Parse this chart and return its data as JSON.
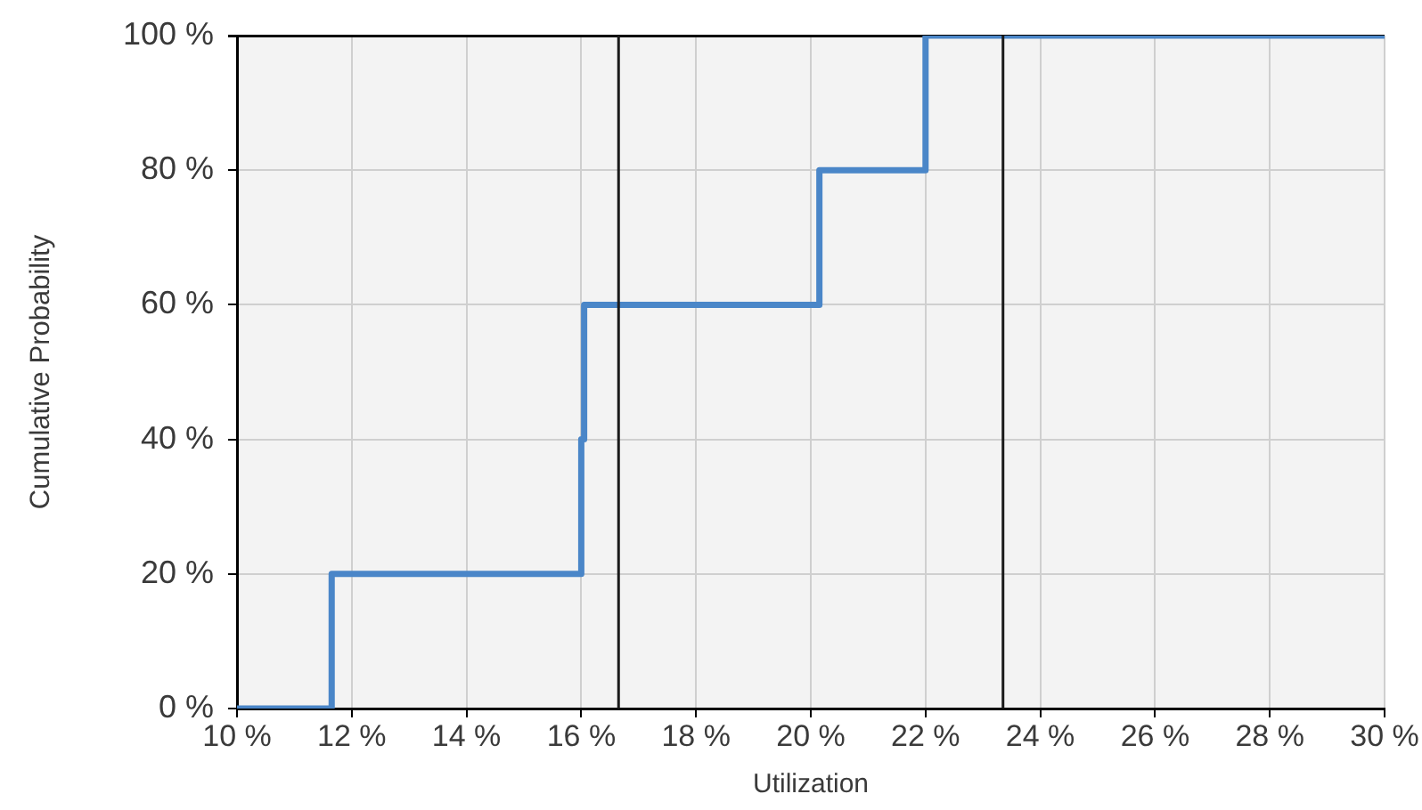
{
  "chart_data": {
    "type": "step",
    "xlabel": "Utilization",
    "ylabel": "Cumulative Probability",
    "x": [
      10,
      11.65,
      16.0,
      16.05,
      20.15,
      22.0,
      30
    ],
    "series": [
      {
        "color": "#4a86c8",
        "values": [
          0,
          20,
          40,
          60,
          80,
          100,
          100
        ]
      }
    ],
    "xlim": [
      10,
      30
    ],
    "xticks": [
      {
        "value": 10,
        "label": "10 %"
      },
      {
        "value": 12,
        "label": "12 %"
      },
      {
        "value": 14,
        "label": "14 %"
      },
      {
        "value": 16,
        "label": "16 %"
      },
      {
        "value": 18,
        "label": "18 %"
      },
      {
        "value": 20,
        "label": "20 %"
      },
      {
        "value": 22,
        "label": "22 %"
      },
      {
        "value": 24,
        "label": "24 %"
      },
      {
        "value": 26,
        "label": "26 %"
      },
      {
        "value": 28,
        "label": "28 %"
      },
      {
        "value": 30,
        "label": "30 %"
      }
    ],
    "ylim": [
      0,
      100
    ],
    "yticks": [
      {
        "value": 0,
        "label": "0 %"
      },
      {
        "value": 20,
        "label": "20 %"
      },
      {
        "value": 40,
        "label": "40 %"
      },
      {
        "value": 60,
        "label": "60 %"
      },
      {
        "value": 80,
        "label": "80 %"
      },
      {
        "value": 100,
        "label": "100 %"
      }
    ],
    "ref_lines": [
      {
        "axis": "x",
        "value": 16.65,
        "color": "#1a1a1a"
      },
      {
        "axis": "x",
        "value": 23.35,
        "color": "#1a1a1a"
      }
    ],
    "grid": true,
    "marker": "none"
  }
}
